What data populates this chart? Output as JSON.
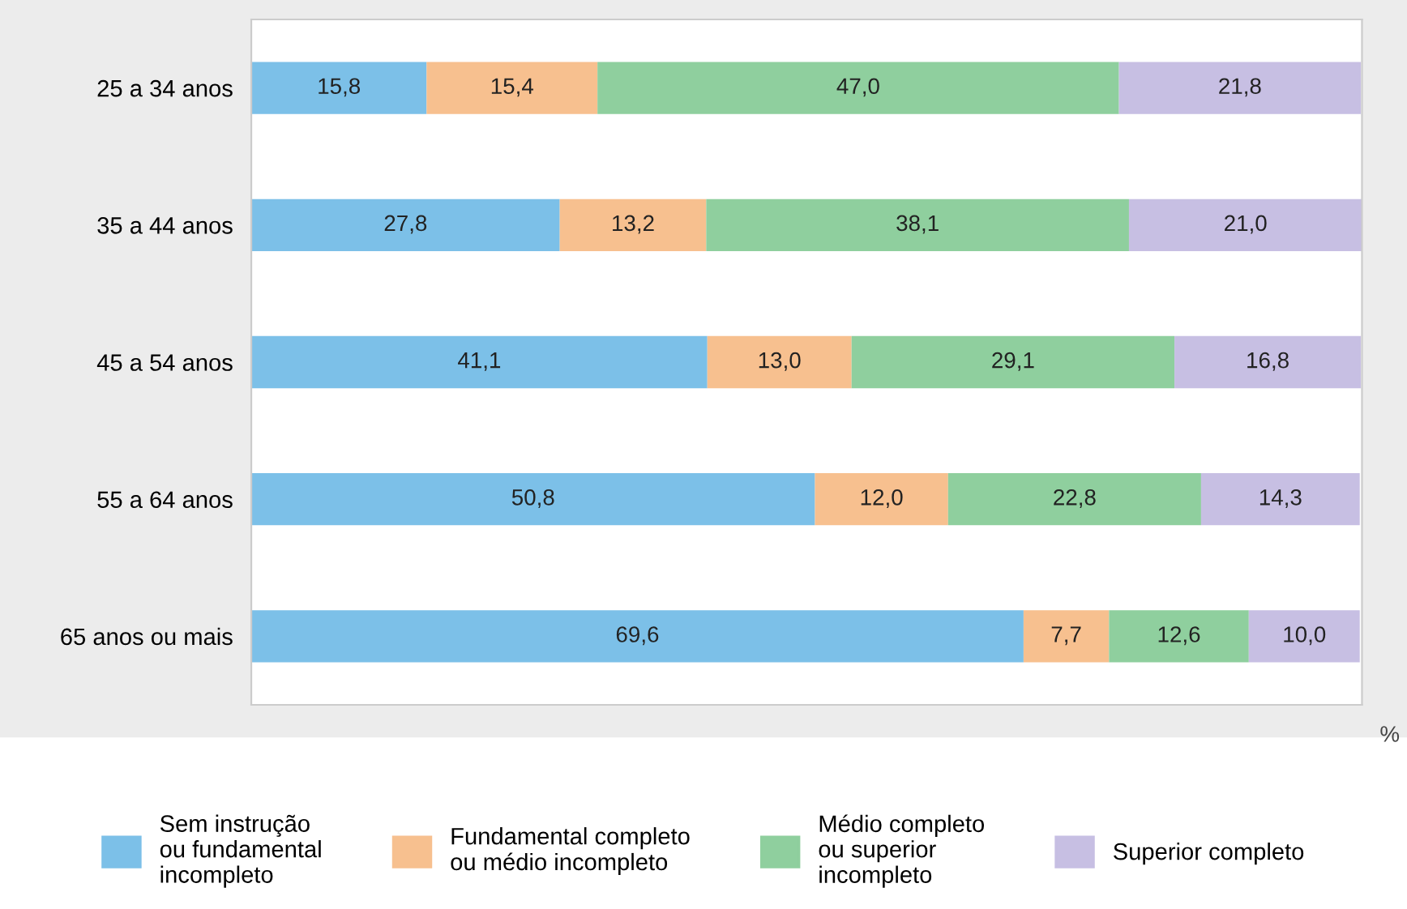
{
  "chart_data": {
    "type": "bar",
    "orientation": "horizontal",
    "stacked": true,
    "xlabel": "%",
    "legend": "bottom",
    "grid": false,
    "categories": [
      "25 a 34 anos",
      "35 a 44 anos",
      "45 a 54 anos",
      "55 a 64 anos",
      "65 anos ou mais"
    ],
    "series": [
      {
        "name": "Sem instrução\nou fundamental\nincompleto",
        "color": "#7cc0e8",
        "values": [
          15.8,
          27.8,
          41.1,
          50.8,
          69.6
        ],
        "value_labels": [
          "15,8",
          "27,8",
          "41,1",
          "50,8",
          "69,6"
        ]
      },
      {
        "name": "Fundamental completo\nou médio incompleto",
        "color": "#f7c08f",
        "values": [
          15.4,
          13.2,
          13.0,
          12.0,
          7.7
        ],
        "value_labels": [
          "15,4",
          "13,2",
          "13,0",
          "12,0",
          "7,7"
        ]
      },
      {
        "name": "Médio completo\nou superior\nincompleto",
        "color": "#8fcf9e",
        "values": [
          47.0,
          38.1,
          29.1,
          22.8,
          12.6
        ],
        "value_labels": [
          "47,0",
          "38,1",
          "29,1",
          "22,8",
          "12,6"
        ]
      },
      {
        "name": "Superior completo",
        "color": "#c7bfe3",
        "values": [
          21.8,
          21.0,
          16.8,
          14.3,
          10.0
        ],
        "value_labels": [
          "21,8",
          "21,0",
          "16,8",
          "14,3",
          "10,0"
        ]
      }
    ]
  }
}
